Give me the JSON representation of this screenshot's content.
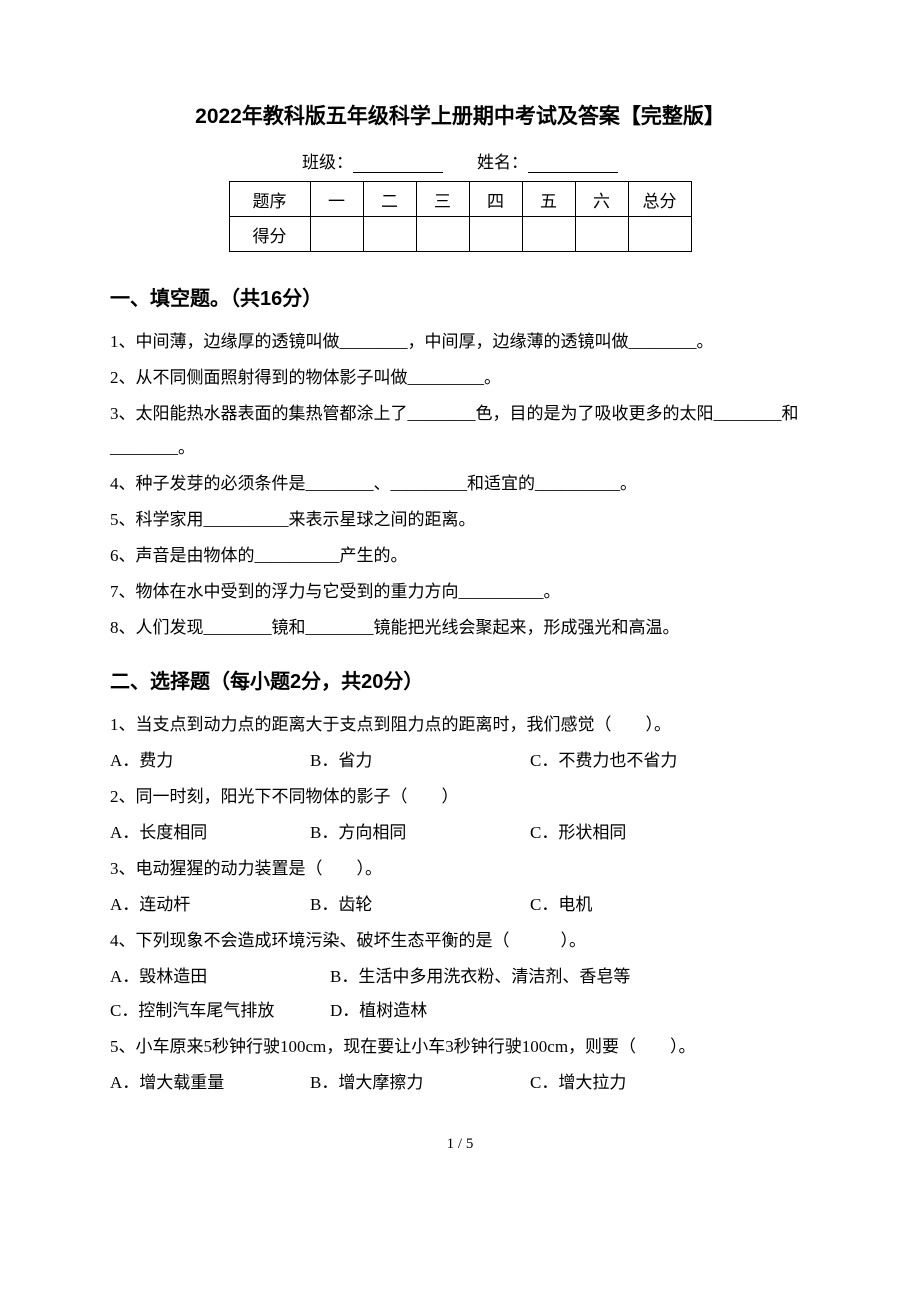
{
  "title": "2022年教科版五年级科学上册期中考试及答案【完整版】",
  "header": {
    "class_label": "班级：",
    "name_label": "姓名："
  },
  "score_table": {
    "headers": [
      "题序",
      "一",
      "二",
      "三",
      "四",
      "五",
      "六",
      "总分"
    ],
    "row2_label": "得分"
  },
  "section1": {
    "heading": "一、填空题。（共16分）",
    "items": [
      "1、中间薄，边缘厚的透镜叫做________，中间厚，边缘薄的透镜叫做________。",
      "2、从不同侧面照射得到的物体影子叫做_________。",
      "3、太阳能热水器表面的集热管都涂上了________色，目的是为了吸收更多的太阳________和________。",
      "4、种子发芽的必须条件是________、_________和适宜的__________。",
      "5、科学家用__________来表示星球之间的距离。",
      "6、声音是由物体的__________产生的。",
      "7、物体在水中受到的浮力与它受到的重力方向__________。",
      "8、人们发现________镜和________镜能把光线会聚起来，形成强光和高温。"
    ]
  },
  "section2": {
    "heading": "二、选择题（每小题2分，共20分）",
    "q1": {
      "text": "1、当支点到动力点的距离大于支点到阻力点的距离时，我们感觉（　　）。",
      "a": "A．费力",
      "b": "B．省力",
      "c": "C．不费力也不省力"
    },
    "q2": {
      "text": "2、同一时刻，阳光下不同物体的影子（　　）",
      "a": "A．长度相同",
      "b": "B．方向相同",
      "c": "C．形状相同"
    },
    "q3": {
      "text": "3、电动猩猩的动力装置是（　　）。",
      "a": "A．连动杆",
      "b": "B．齿轮",
      "c": "C．电机"
    },
    "q4": {
      "text": "4、下列现象不会造成环境污染、破坏生态平衡的是（　　　）。",
      "r1a": "A．毁林造田",
      "r1b": "B．生活中多用洗衣粉、清洁剂、香皂等",
      "r2a": "C．控制汽车尾气排放",
      "r2b": "D．植树造林"
    },
    "q5": {
      "text": "5、小车原来5秒钟行驶100cm，现在要让小车3秒钟行驶100cm，则要（　　）。",
      "a": "A．增大载重量",
      "b": "B．增大摩擦力",
      "c": "C．增大拉力"
    }
  },
  "footer": "1 / 5",
  "colors": {
    "background": "#ffffff",
    "text": "#000000",
    "border": "#000000"
  },
  "fonts": {
    "title_family": "SimHei",
    "body_family": "SimSun",
    "title_size_pt": 16,
    "heading_size_pt": 15,
    "body_size_pt": 13
  }
}
